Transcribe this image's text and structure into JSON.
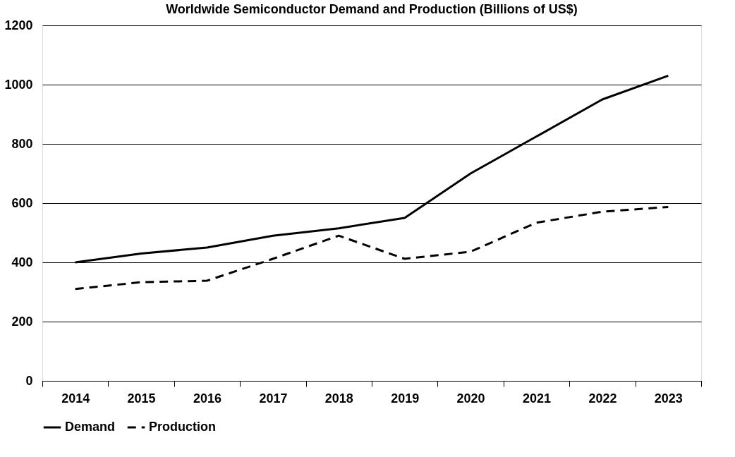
{
  "chart_data": {
    "type": "line",
    "title": "Worldwide Semiconductor Demand and Production (Billions of US$)",
    "categories": [
      "2014",
      "2015",
      "2016",
      "2017",
      "2018",
      "2019",
      "2020",
      "2021",
      "2022",
      "2023"
    ],
    "series": [
      {
        "name": "Demand",
        "color": "#000000",
        "line_style": "solid",
        "values": [
          400,
          430,
          450,
          490,
          515,
          550,
          700,
          825,
          950,
          1030
        ]
      },
      {
        "name": "Production",
        "color": "#000000",
        "line_style": "dashed",
        "values": [
          310,
          333,
          338,
          412,
          490,
          412,
          436,
          534,
          571,
          587
        ]
      }
    ],
    "ylim": [
      0,
      1200
    ],
    "yticks": [
      0,
      200,
      400,
      600,
      800,
      1000,
      1200
    ],
    "grid": "y",
    "legend": "bottom"
  }
}
